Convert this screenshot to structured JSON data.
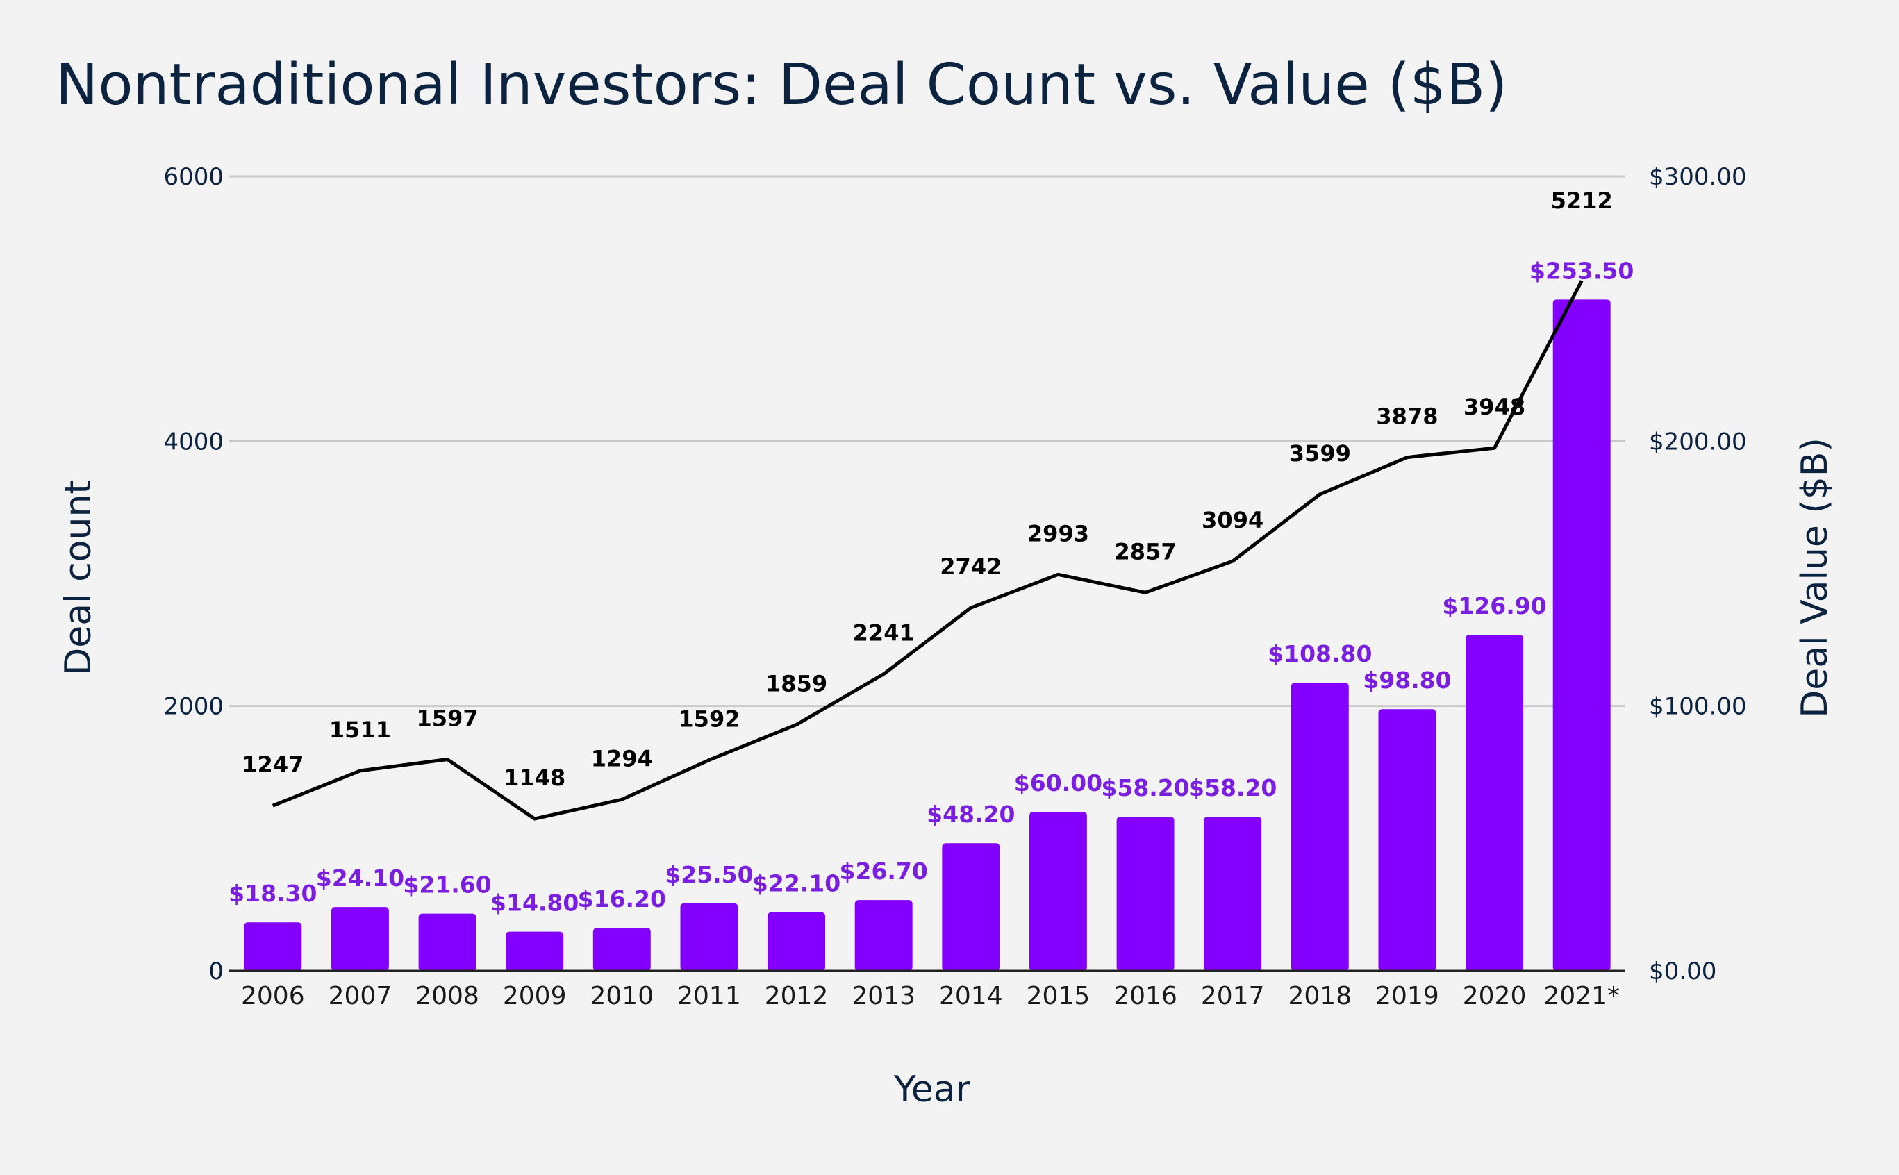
{
  "chart_data": {
    "type": "bar",
    "title": "Nontraditional Investors: Deal Count vs. Value ($B)",
    "xlabel": "Year",
    "ylabel_left": "Deal count",
    "ylabel_right": "Deal Value ($B)",
    "categories": [
      "2006",
      "2007",
      "2008",
      "2009",
      "2010",
      "2011",
      "2012",
      "2013",
      "2014",
      "2015",
      "2016",
      "2017",
      "2018",
      "2019",
      "2020",
      "2021*"
    ],
    "left_axis": {
      "range": [
        0,
        6000
      ],
      "ticks": [
        "0",
        "2000",
        "4000",
        "6000"
      ],
      "tick_values": [
        0,
        2000,
        4000,
        6000
      ]
    },
    "right_axis": {
      "range": [
        0,
        300
      ],
      "ticks": [
        "$0.00",
        "$100.00",
        "$200.00",
        "$300.00"
      ],
      "tick_values": [
        0,
        100,
        200,
        300
      ]
    },
    "grid": true,
    "series": [
      {
        "type": "bar",
        "axis": "right",
        "values": [
          18.3,
          24.1,
          21.6,
          14.8,
          16.2,
          25.5,
          22.1,
          26.7,
          48.2,
          60.0,
          58.2,
          58.2,
          108.8,
          98.8,
          126.9,
          253.5
        ],
        "labels": [
          "$18.30",
          "$24.10",
          "$21.60",
          "$14.80",
          "$16.20",
          "$25.50",
          "$22.10",
          "$26.70",
          "$48.20",
          "$60.00",
          "$58.20",
          "$58.20",
          "$108.80",
          "$98.80",
          "$126.90",
          "$253.50"
        ],
        "color": "#8300ff",
        "label_color": "#7a1ee0"
      },
      {
        "type": "line",
        "axis": "left",
        "values": [
          1247,
          1511,
          1597,
          1148,
          1294,
          1592,
          1859,
          2241,
          2742,
          2993,
          2857,
          3094,
          3599,
          3878,
          3948,
          5212
        ],
        "labels": [
          "1247",
          "1511",
          "1597",
          "1148",
          "1294",
          "1592",
          "1859",
          "2241",
          "2742",
          "2993",
          "2857",
          "3094",
          "3599",
          "3878",
          "3948",
          "5212"
        ],
        "color": "#000000"
      }
    ],
    "colors": {
      "title": "#0c2340",
      "axis_text": "#0c2340",
      "grid": "#c9c9c9",
      "background": "#f3f3f3"
    }
  }
}
